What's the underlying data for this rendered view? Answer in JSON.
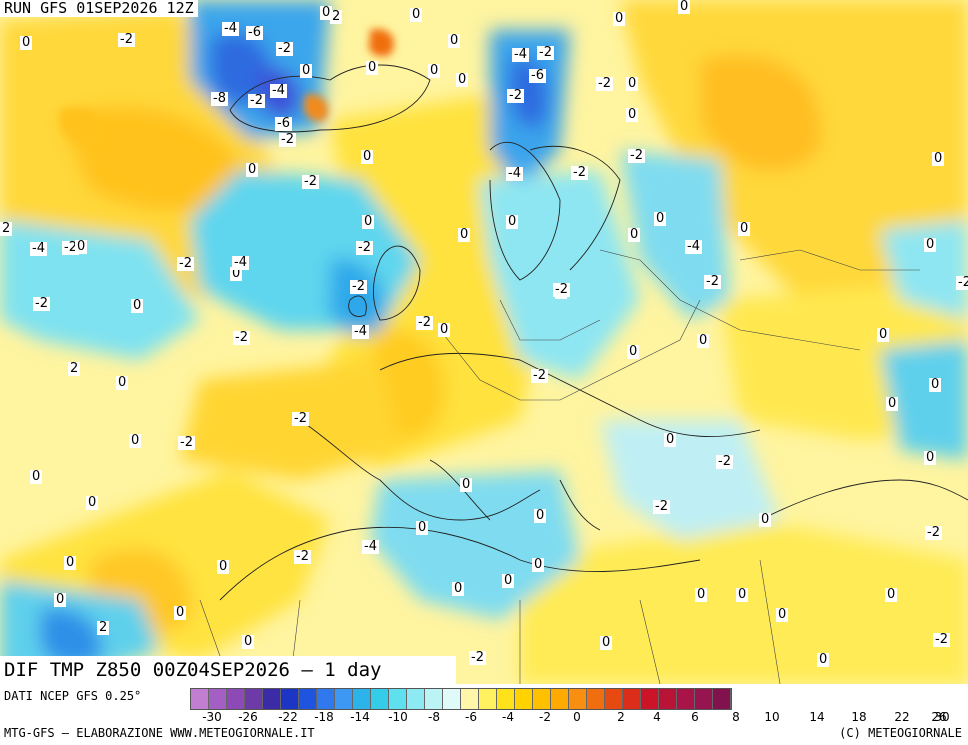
{
  "header": {
    "run_title": "RUN GFS 01SEP2026 12Z"
  },
  "map": {
    "title": "DIF TMP Z850 00Z04SEP2026 – 1 day",
    "contour_labels": [
      "0",
      "-2",
      "2",
      "-4",
      "-6",
      "-8",
      "-2",
      "-4",
      "-6",
      "0",
      "2",
      "-2",
      "0",
      "0",
      "0",
      "0",
      "-4",
      "-2",
      "-6",
      "-2",
      "0",
      "0",
      "0",
      "0",
      "0",
      "-2",
      "0",
      "-2",
      "-2",
      "-2",
      "0",
      "-2",
      "0",
      "-4",
      "0",
      "-2",
      "0",
      "0",
      "-4",
      "-2",
      "0",
      "-2",
      "0",
      "-4",
      "-2",
      "-4",
      "0",
      "-2",
      "-2",
      "-4",
      "-2",
      "0",
      "0",
      "0",
      "-2",
      "0",
      "0",
      "2",
      "0",
      "0",
      "0",
      "-2",
      "0",
      "-2",
      "-2",
      "0",
      "0",
      "-2",
      "0",
      "-2",
      "0",
      "-2",
      "0",
      "0",
      "0",
      "-4",
      "2",
      "0",
      "-2",
      "0",
      "0",
      "0",
      "0",
      "0",
      "0",
      "-2",
      "0",
      "0",
      "0",
      "0",
      "0",
      "-2",
      "0",
      "0",
      "0",
      "0",
      "-2",
      "0",
      "0",
      "-2",
      "0",
      "0"
    ],
    "colors": {
      "neg_dark": "#3c50d8",
      "neg_mid": "#27b4ea",
      "neg_light": "#8fe4f2",
      "near_zero": "#d7f4f6",
      "pos_light": "#fff36a",
      "pos_mid": "#ffd400",
      "pos_dark": "#f7a41a",
      "border": "#222222"
    }
  },
  "footer": {
    "source": "DATI NCEP GFS 0.25°",
    "credit": "MTG-GFS – ELABORAZIONE WWW.METEOGIORNALE.IT",
    "copyright": "(C) METEOGIORNALE"
  },
  "legend": {
    "colors": [
      "#c27fd2",
      "#a45fc4",
      "#8d49b6",
      "#6e3aa8",
      "#3b2ba6",
      "#1d35c4",
      "#1f55de",
      "#2f78ee",
      "#3c98f2",
      "#2cb4ea",
      "#34cce8",
      "#5ee0ee",
      "#8eeaf2",
      "#bcf4f6",
      "#e0fafa",
      "#fff6aa",
      "#fff160",
      "#ffe21a",
      "#ffd200",
      "#ffc000",
      "#ffaa00",
      "#f88f10",
      "#f06e10",
      "#e64a10",
      "#dc2c1a",
      "#cc1428",
      "#b81438",
      "#a81448",
      "#961450",
      "#82124e"
    ],
    "ticks": [
      "-30",
      "-26",
      "-22",
      "-18",
      "-14",
      "-10",
      "-8",
      "-6",
      "-4",
      "-2",
      "0",
      "2",
      "4",
      "6",
      "8",
      "10",
      "14",
      "18",
      "22",
      "26",
      "30"
    ]
  }
}
